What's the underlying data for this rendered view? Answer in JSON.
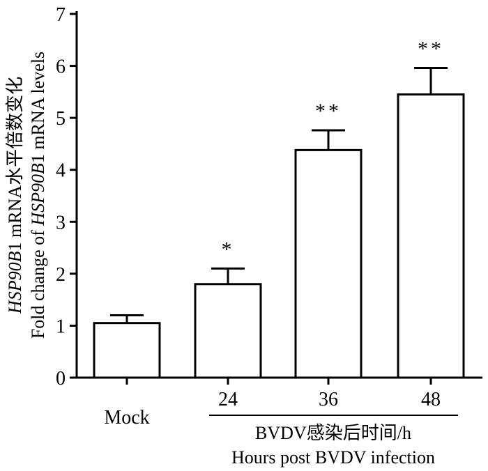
{
  "chart_data": {
    "type": "bar",
    "categories": [
      "Mock",
      "24",
      "36",
      "48"
    ],
    "values": [
      1.05,
      1.8,
      4.38,
      5.45
    ],
    "error_upper": [
      1.2,
      2.1,
      4.76,
      5.96
    ],
    "significance": [
      "",
      "*",
      "**",
      "**"
    ],
    "ylim": [
      0,
      7
    ],
    "yticks": [
      0,
      1,
      2,
      3,
      4,
      5,
      6,
      7
    ],
    "ylabel_line1": {
      "prefix": "",
      "italic": "HSP90B",
      "suffix": "1 mRNA水平倍数变化"
    },
    "ylabel_line2": {
      "prefix": "Fold change of ",
      "italic": "HSP90B",
      "suffix": "1 mRNA levels"
    },
    "xlabel_line1": "BVDV感染后时间/h",
    "xlabel_line2": "Hours post BVDV infection",
    "grid": false,
    "bar_fill": "#ffffff",
    "bar_stroke": "#000000"
  }
}
